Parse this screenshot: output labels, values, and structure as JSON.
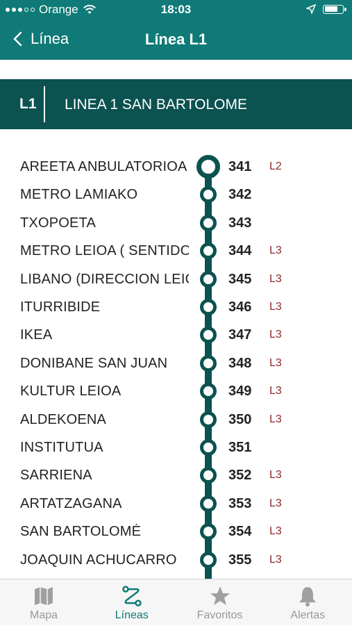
{
  "status": {
    "carrier": "Orange",
    "time": "18:03"
  },
  "nav": {
    "back_label": "Línea",
    "title": "Línea L1"
  },
  "line": {
    "code": "L1",
    "name": "LINEA 1 SAN BARTOLOME"
  },
  "stops": [
    {
      "name": "AREETA ANBULATORIOA",
      "number": "341",
      "connection": "L2"
    },
    {
      "name": "METRO LAMIAKO",
      "number": "342",
      "connection": ""
    },
    {
      "name": "TXOPOETA",
      "number": "343",
      "connection": ""
    },
    {
      "name": "METRO LEIOA ( SENTIDO",
      "number": "344",
      "connection": "L3"
    },
    {
      "name": "LIBANO (DIRECCION LEIOA",
      "number": "345",
      "connection": "L3"
    },
    {
      "name": "ITURRIBIDE",
      "number": "346",
      "connection": "L3"
    },
    {
      "name": "IKEA",
      "number": "347",
      "connection": "L3"
    },
    {
      "name": "DONIBANE SAN JUAN",
      "number": "348",
      "connection": "L3"
    },
    {
      "name": "KULTUR LEIOA",
      "number": "349",
      "connection": "L3"
    },
    {
      "name": "ALDEKOENA",
      "number": "350",
      "connection": "L3"
    },
    {
      "name": "INSTITUTUA",
      "number": "351",
      "connection": ""
    },
    {
      "name": "SARRIENA",
      "number": "352",
      "connection": "L3"
    },
    {
      "name": "ARTATZAGANA",
      "number": "353",
      "connection": "L3"
    },
    {
      "name": "SAN BARTOLOMÉ",
      "number": "354",
      "connection": "L3"
    },
    {
      "name": "JOAQUIN ACHUCARRO",
      "number": "355",
      "connection": "L3"
    }
  ],
  "tabs": [
    {
      "label": "Mapa",
      "icon": "map-icon",
      "active": false
    },
    {
      "label": "Líneas",
      "icon": "route-icon",
      "active": true
    },
    {
      "label": "Favoritos",
      "icon": "star-icon",
      "active": false
    },
    {
      "label": "Alertas",
      "icon": "bell-icon",
      "active": false
    }
  ],
  "colors": {
    "brand": "#0f7a77",
    "line_dark": "#0b5250",
    "connection": "#8b2a2a",
    "inactive_tab": "#999999"
  }
}
